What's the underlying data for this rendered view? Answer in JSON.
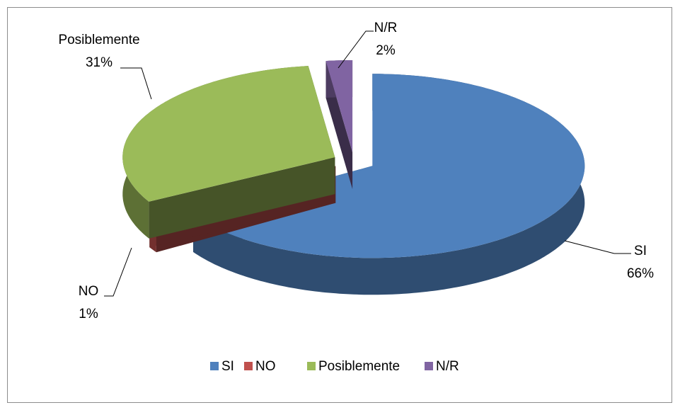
{
  "chart_data": {
    "type": "pie",
    "categories": [
      "SI",
      "NO",
      "Posiblemente",
      "N/R"
    ],
    "values": [
      66,
      1,
      31,
      2
    ],
    "value_labels": [
      "66%",
      "1%",
      "31%",
      "2%"
    ],
    "colors": [
      "#4f81bd",
      "#c0504d",
      "#9bbb59",
      "#8064a2"
    ],
    "legend": "bottom"
  }
}
